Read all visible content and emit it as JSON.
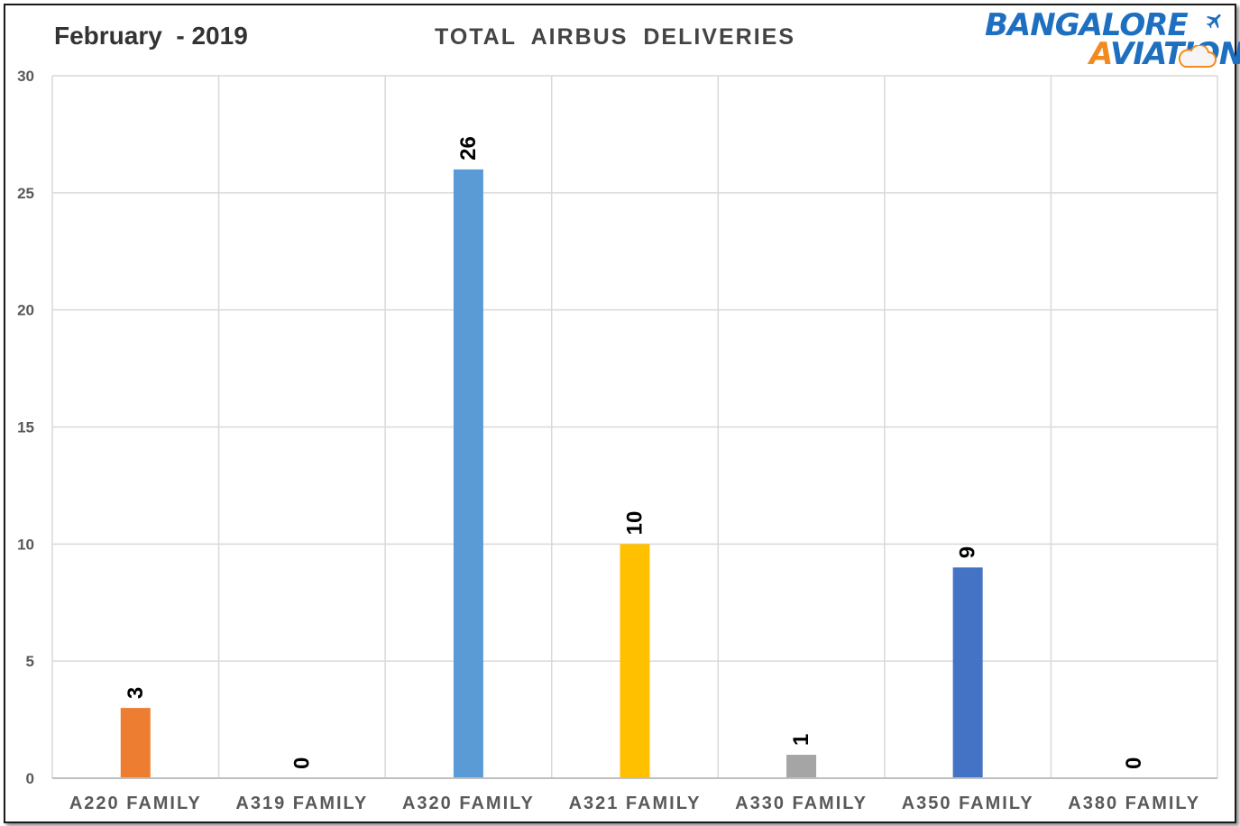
{
  "header": {
    "date_label": "February  - 2019",
    "title": "TOTAL  AIRBUS  DELIVERIES"
  },
  "logo": {
    "line1_a": "B",
    "line1_b": "ANGALORE",
    "line2_a": "A",
    "line2_b": "VIATION",
    "primary_color": "#1f6fc1",
    "accent_color": "#f28a1f",
    "icon": "airplane-icon"
  },
  "chart_data": {
    "type": "bar",
    "title": "TOTAL  AIRBUS  DELIVERIES",
    "xlabel": "",
    "ylabel": "",
    "categories": [
      "A220 FAMILY",
      "A319 FAMILY",
      "A320 FAMILY",
      "A321 FAMILY",
      "A330 FAMILY",
      "A350 FAMILY",
      "A380 FAMILY"
    ],
    "values": [
      3,
      0,
      26,
      10,
      1,
      9,
      0
    ],
    "colors": [
      "#ed7d31",
      "#a5a5a5",
      "#5b9bd5",
      "#ffc000",
      "#a5a5a5",
      "#4472c4",
      "#a5a5a5"
    ],
    "ylim": [
      0,
      30
    ],
    "yticks": [
      0,
      5,
      10,
      15,
      20,
      25,
      30
    ],
    "grid": true,
    "legend": "none",
    "data_labels": true
  }
}
